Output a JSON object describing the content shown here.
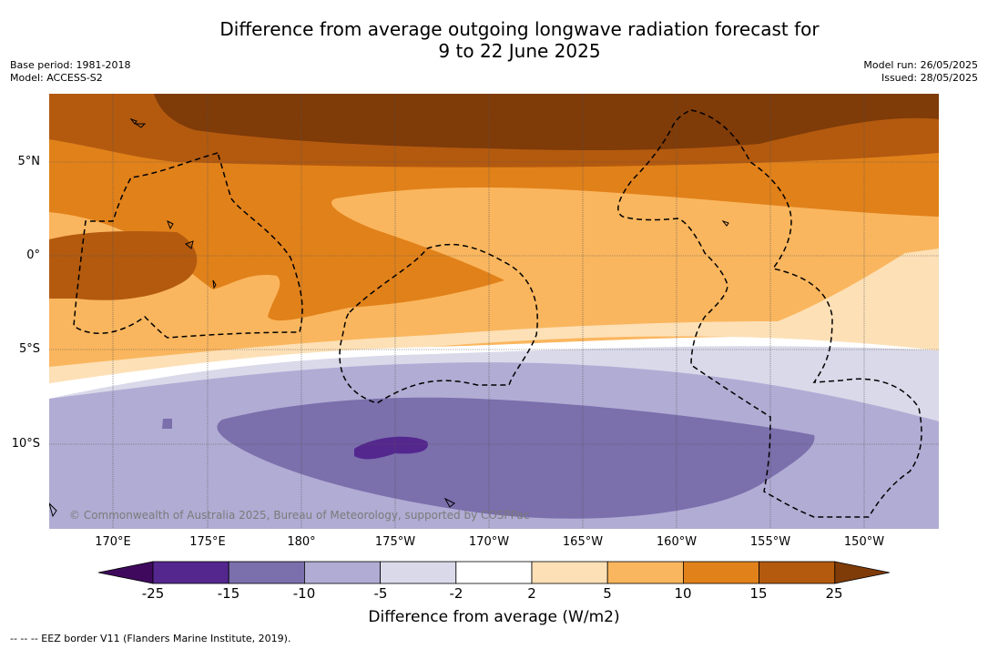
{
  "title": {
    "line1": "Difference from average outgoing longwave radiation forecast for",
    "line2": "9 to 22 June 2025"
  },
  "meta": {
    "base_period": "Base period: 1981-2018",
    "model": "Model: ACCESS-S2",
    "model_run": "Model run: 26/05/2025",
    "issued": "Issued: 28/05/2025"
  },
  "map": {
    "credit": "© Commonwealth of Australia 2025, Bureau of Meteorology, supported by COSPPac",
    "lon_ticks": [
      "170°E",
      "175°E",
      "180°",
      "175°W",
      "170°W",
      "165°W",
      "160°W",
      "155°W",
      "150°W"
    ],
    "lat_ticks": [
      "5°N",
      "0°",
      "5°S",
      "10°S"
    ],
    "gridlines": true
  },
  "colorbar": {
    "title": "Difference from average (W/m2)",
    "labels": [
      "-25",
      "-15",
      "-10",
      "-5",
      "-2",
      "2",
      "5",
      "10",
      "15",
      "25"
    ],
    "bins": [
      {
        "range": "<-25",
        "color": "#3f0a5e"
      },
      {
        "range": "-25 to -15",
        "color": "#54278f"
      },
      {
        "range": "-15 to -10",
        "color": "#7b6fac"
      },
      {
        "range": "-10 to -5",
        "color": "#b1acd4"
      },
      {
        "range": "-5 to -2",
        "color": "#d9d9ea"
      },
      {
        "range": "-2 to 2",
        "color": "#ffffff"
      },
      {
        "range": "2 to 5",
        "color": "#fde0b6"
      },
      {
        "range": "5 to 10",
        "color": "#fab65e"
      },
      {
        "range": "10 to 15",
        "color": "#e1811a"
      },
      {
        "range": "15 to 25",
        "color": "#b35a0f"
      },
      {
        "range": ">25",
        "color": "#7f3b08"
      }
    ]
  },
  "footer": "-- -- -- EEZ border V11 (Flanders Marine Institute, 2019)."
}
